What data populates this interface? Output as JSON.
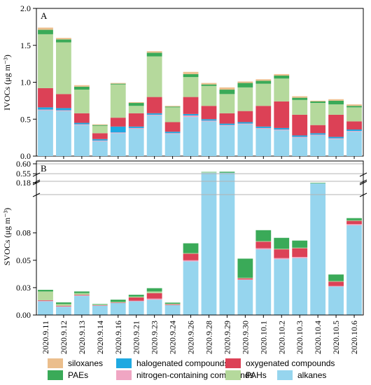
{
  "palette": {
    "siloxanes": "#ebbe8c",
    "halogenated": "#1fa9e1",
    "oxygenated": "#dc4156",
    "paes": "#3aaa58",
    "nitrogen": "#f0a6c3",
    "pahs": "#b5d99c",
    "alkanes": "#96d5ee",
    "axis": "#000000",
    "ref_line": "#b3b3b3"
  },
  "legend": [
    {
      "key": "siloxanes",
      "label": "siloxanes"
    },
    {
      "key": "halogenated",
      "label": "halogenated compounds"
    },
    {
      "key": "oxygenated",
      "label": "oxygenated compounds"
    },
    {
      "key": "paes",
      "label": "PAEs"
    },
    {
      "key": "nitrogen",
      "label": "nitrogen-containing compounds"
    },
    {
      "key": "pahs",
      "label": "PAHs"
    },
    {
      "key": "alkanes",
      "label": "alkanes"
    }
  ],
  "chart_data": [
    {
      "type": "bar",
      "stacked": true,
      "panel": "A",
      "ylabel": "IVOCs (μg m⁻³)",
      "ylim": [
        0,
        2.0
      ],
      "yticks": [
        "0.0",
        "0.5",
        "1.0",
        "1.5",
        "2.0"
      ],
      "categories": [
        "2020.9.11",
        "2020.9.12",
        "2020.9.13",
        "2020.9.14",
        "2020.9.16",
        "2020.9.21",
        "2020.9.23",
        "2020.9.24",
        "2020.9.26",
        "2020.9.28",
        "2020.9.29",
        "2020.9.30",
        "2020.10.1",
        "2020.10.2",
        "2020.10.3",
        "2020.10.4",
        "2020.10.5",
        "2020.10.6"
      ],
      "series": [
        {
          "key": "alkanes",
          "name": "alkanes",
          "values": [
            0.62,
            0.61,
            0.42,
            0.2,
            0.31,
            0.37,
            0.55,
            0.3,
            0.53,
            0.47,
            0.41,
            0.43,
            0.37,
            0.35,
            0.25,
            0.28,
            0.23,
            0.33
          ]
        },
        {
          "key": "nitrogen",
          "name": "nitrogen-containing compounds",
          "values": [
            0.01,
            0.01,
            0.01,
            0.01,
            0.01,
            0.01,
            0.01,
            0.01,
            0.02,
            0.01,
            0.01,
            0.01,
            0.01,
            0.01,
            0.01,
            0.01,
            0.01,
            0.01
          ]
        },
        {
          "key": "halogenated",
          "name": "halogenated compounds",
          "values": [
            0.03,
            0.03,
            0.02,
            0.02,
            0.08,
            0.02,
            0.02,
            0.02,
            0.02,
            0.02,
            0.02,
            0.02,
            0.02,
            0.02,
            0.02,
            0.02,
            0.02,
            0.02
          ]
        },
        {
          "key": "oxygenated",
          "name": "oxygenated compounds",
          "values": [
            0.26,
            0.19,
            0.13,
            0.08,
            0.12,
            0.18,
            0.22,
            0.13,
            0.23,
            0.18,
            0.14,
            0.15,
            0.28,
            0.36,
            0.28,
            0.11,
            0.3,
            0.11
          ]
        },
        {
          "key": "pahs",
          "name": "PAHs",
          "values": [
            0.73,
            0.7,
            0.32,
            0.1,
            0.45,
            0.1,
            0.55,
            0.2,
            0.27,
            0.27,
            0.26,
            0.32,
            0.3,
            0.31,
            0.2,
            0.3,
            0.14,
            0.19
          ]
        },
        {
          "key": "paes",
          "name": "PAEs",
          "values": [
            0.06,
            0.04,
            0.04,
            0.01,
            0.01,
            0.04,
            0.05,
            0.01,
            0.04,
            0.02,
            0.06,
            0.06,
            0.04,
            0.04,
            0.03,
            0.02,
            0.05,
            0.02
          ]
        },
        {
          "key": "siloxanes",
          "name": "siloxanes",
          "values": [
            0.03,
            0.02,
            0.02,
            0.01,
            0.01,
            0.01,
            0.02,
            0.01,
            0.03,
            0.02,
            0.03,
            0.02,
            0.02,
            0.02,
            0.02,
            0.01,
            0.02,
            0.02
          ]
        }
      ]
    },
    {
      "type": "bar",
      "stacked": true,
      "panel": "B",
      "ylabel": "SVOCs (μg m⁻³)",
      "axis_break": true,
      "ylim_lower": [
        0,
        0.11
      ],
      "ylim_middle": [
        0.175,
        0.185
      ],
      "ylim_upper": [
        0.54,
        0.6
      ],
      "yticks_lower": [
        "0.00",
        "0.03",
        "0.05",
        "0.08"
      ],
      "yticks_middle": [
        "0.18"
      ],
      "yticks_upper": [
        "0.55",
        "0.60"
      ],
      "categories": [
        "2020.9.11",
        "2020.9.12",
        "2020.9.13",
        "2020.9.14",
        "2020.9.16",
        "2020.9.21",
        "2020.9.23",
        "2020.9.24",
        "2020.9.26",
        "2020.9.28",
        "2020.9.29",
        "2020.9.30",
        "2020.10.1",
        "2020.10.2",
        "2020.10.3",
        "2020.10.4",
        "2020.10.5",
        "2020.10.6"
      ],
      "series": [
        {
          "key": "alkanes",
          "name": "alkanes",
          "values": [
            0.0125,
            0.0075,
            0.0175,
            0.0085,
            0.011,
            0.0125,
            0.014,
            0.009,
            0.049,
            0.555,
            0.555,
            0.032,
            0.06,
            0.051,
            0.052,
            0.178,
            0.026,
            0.082
          ]
        },
        {
          "key": "nitrogen",
          "name": "nitrogen-containing compounds",
          "values": [
            0.0005,
            0.0005,
            0.0005,
            0.0003,
            0.0003,
            0.0005,
            0.001,
            0.0003,
            0.001,
            0.0,
            0.0,
            0.0005,
            0.001,
            0.001,
            0.001,
            0.0,
            0.0005,
            0.001
          ]
        },
        {
          "key": "oxygenated",
          "name": "oxygenated compounds",
          "values": [
            0.0005,
            0.0005,
            0.0005,
            0.0002,
            0.0002,
            0.003,
            0.005,
            0.0005,
            0.006,
            0.0,
            0.0,
            0.001,
            0.006,
            0.008,
            0.008,
            0.0,
            0.004,
            0.003
          ]
        },
        {
          "key": "pahs",
          "name": "PAHs",
          "values": [
            0.008,
            0.0015,
            0.0015,
            0.0005,
            0.0005,
            0.0008,
            0.0015,
            0.0005,
            0.0005,
            0.002,
            0.0,
            0.0005,
            0.0005,
            0.0005,
            0.0005,
            0.001,
            0.0005,
            0.0005
          ]
        },
        {
          "key": "paes",
          "name": "PAEs",
          "values": [
            0.0015,
            0.0015,
            0.0015,
            0.0005,
            0.002,
            0.0017,
            0.003,
            0.001,
            0.009,
            0.002,
            0.005,
            0.0175,
            0.01,
            0.01,
            0.0065,
            0.001,
            0.006,
            0.002
          ]
        }
      ]
    }
  ]
}
